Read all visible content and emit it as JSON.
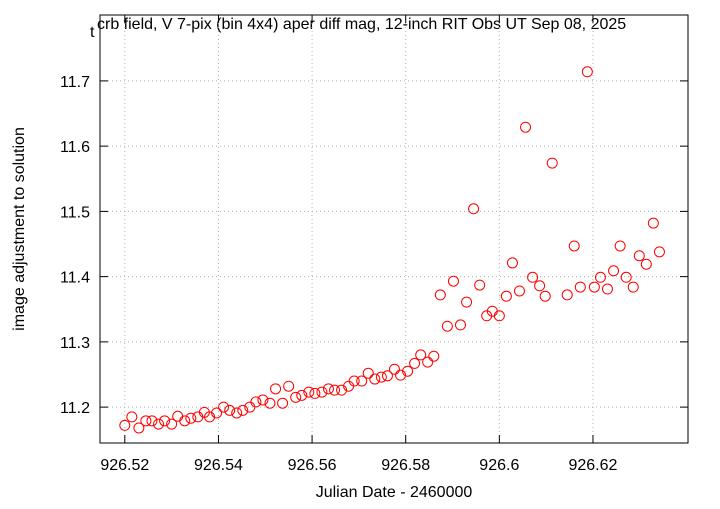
{
  "chart_data": {
    "type": "scatter",
    "title_subscript": "t",
    "title": "crb field, V 7-pix (bin 4x4) aper diff mag,  12-inch RIT Obs UT Sep 08, 2025",
    "x_label": "Julian Date - 2460000",
    "y_label": "image adjustment to solution",
    "xlim": [
      926.5147,
      926.6403
    ],
    "ylim": [
      11.145,
      11.801
    ],
    "xticks": [
      926.52,
      926.54,
      926.56,
      926.58,
      926.6,
      926.62
    ],
    "yticks": [
      11.2,
      11.3,
      11.4,
      11.5,
      11.6,
      11.7
    ],
    "grid": true,
    "color": "#ff0000",
    "x": [
      926.52,
      926.5215,
      926.523,
      926.5245,
      926.5258,
      926.5272,
      926.5285,
      926.53,
      926.5313,
      926.5328,
      926.5341,
      926.5356,
      926.537,
      926.5381,
      926.5396,
      926.5411,
      926.5424,
      926.5439,
      926.5452,
      926.5467,
      926.548,
      926.5495,
      926.551,
      926.5522,
      926.5537,
      926.555,
      926.5565,
      926.5578,
      926.5593,
      926.5606,
      926.5621,
      926.5635,
      926.5648,
      926.5663,
      926.5678,
      926.569,
      926.5706,
      926.572,
      926.5734,
      926.5748,
      926.5761,
      926.5776,
      926.5789,
      926.5804,
      926.5819,
      926.5832,
      926.5847,
      926.586,
      926.5874,
      926.5889,
      926.5902,
      926.5917,
      926.593,
      926.5945,
      926.5958,
      926.5973,
      926.5985,
      926.6,
      926.6015,
      926.6028,
      926.6043,
      926.6056,
      926.6071,
      926.6086,
      926.6098,
      926.6113,
      926.6145,
      926.616,
      926.6173,
      926.6188,
      926.6203,
      926.6216,
      926.6231,
      926.6244,
      926.6258,
      926.6271,
      926.6286,
      926.6299,
      926.6314,
      926.6329,
      926.6342
    ],
    "values": [
      11.172,
      11.185,
      11.168,
      11.179,
      11.179,
      11.174,
      11.179,
      11.174,
      11.186,
      11.179,
      11.183,
      11.185,
      11.192,
      11.185,
      11.191,
      11.2,
      11.195,
      11.191,
      11.195,
      11.2,
      11.208,
      11.211,
      11.206,
      11.228,
      11.206,
      11.232,
      11.215,
      11.218,
      11.223,
      11.221,
      11.223,
      11.228,
      11.226,
      11.226,
      11.232,
      11.24,
      11.24,
      11.252,
      11.243,
      11.246,
      11.248,
      11.258,
      11.249,
      11.255,
      11.267,
      11.28,
      11.269,
      11.278,
      11.372,
      11.324,
      11.393,
      11.326,
      11.361,
      11.504,
      11.387,
      11.34,
      11.347,
      11.34,
      11.37,
      11.421,
      11.378,
      11.629,
      11.399,
      11.386,
      11.37,
      11.574,
      11.372,
      11.447,
      11.384,
      11.714,
      11.384,
      11.399,
      11.381,
      11.409,
      11.447,
      11.399,
      11.384,
      11.432,
      11.419,
      11.482,
      11.438
    ]
  }
}
